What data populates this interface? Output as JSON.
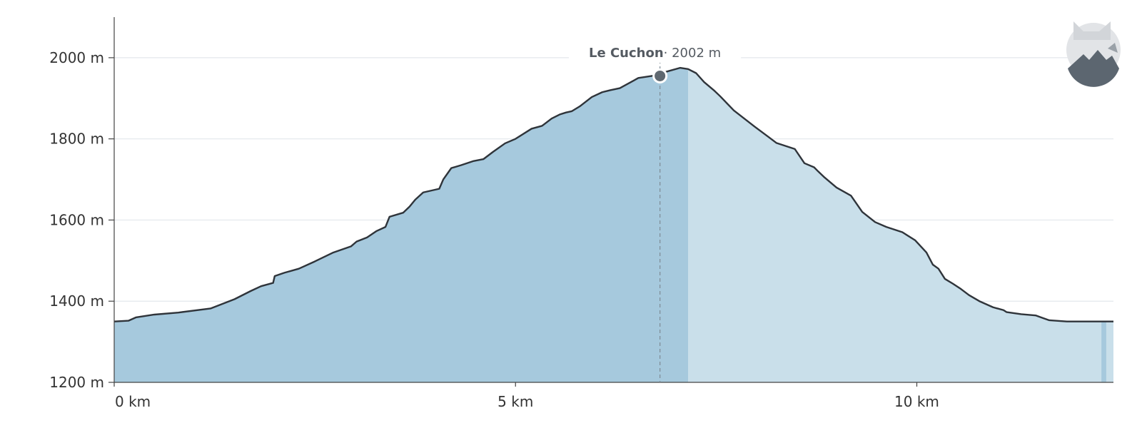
{
  "chart_data": {
    "type": "area",
    "xlabel": "",
    "ylabel": "",
    "x_unit": "km",
    "y_unit": "m",
    "xlim": [
      0,
      12.45
    ],
    "ylim": [
      1200,
      2100
    ],
    "x_ticks": [
      0,
      5,
      10
    ],
    "x_tick_labels": [
      "0 km",
      "5 km",
      "10 km"
    ],
    "y_ticks": [
      1200,
      1400,
      1600,
      1800,
      2000
    ],
    "y_tick_labels": [
      "1200 m",
      "1400 m",
      "1600 m",
      "1800 m",
      "2000 m"
    ],
    "grid": true,
    "highlight_range_km": [
      0,
      7.15
    ],
    "highlight_end_range_km": [
      12.3,
      12.36
    ],
    "x": [
      0,
      0.18,
      0.27,
      0.5,
      0.8,
      1.2,
      1.5,
      1.7,
      1.83,
      1.98,
      2.0,
      2.12,
      2.3,
      2.5,
      2.73,
      2.95,
      3.02,
      3.15,
      3.27,
      3.38,
      3.43,
      3.6,
      3.68,
      3.75,
      3.85,
      4.05,
      4.1,
      4.2,
      4.32,
      4.47,
      4.6,
      4.72,
      4.87,
      5.0,
      5.2,
      5.33,
      5.45,
      5.55,
      5.63,
      5.7,
      5.8,
      5.95,
      6.08,
      6.18,
      6.3,
      6.53,
      6.7,
      6.87,
      7.05,
      7.15,
      7.25,
      7.35,
      7.47,
      7.55,
      7.72,
      7.85,
      7.98,
      8.15,
      8.25,
      8.48,
      8.6,
      8.72,
      8.77,
      8.85,
      9.0,
      9.18,
      9.32,
      9.48,
      9.62,
      9.82,
      9.98,
      10.12,
      10.2,
      10.27,
      10.35,
      10.45,
      10.55,
      10.65,
      10.78,
      10.95,
      11.08,
      11.12,
      11.3,
      11.48,
      11.55,
      11.65,
      11.87,
      12.05,
      12.15,
      12.45
    ],
    "y": [
      1350,
      1352,
      1360,
      1367,
      1372,
      1382,
      1405,
      1425,
      1437,
      1445,
      1462,
      1470,
      1480,
      1498,
      1520,
      1535,
      1547,
      1557,
      1573,
      1583,
      1608,
      1618,
      1633,
      1650,
      1668,
      1677,
      1700,
      1728,
      1735,
      1745,
      1750,
      1768,
      1789,
      1800,
      1825,
      1832,
      1850,
      1860,
      1865,
      1868,
      1880,
      1903,
      1915,
      1920,
      1925,
      1950,
      1955,
      1965,
      1975,
      1972,
      1962,
      1940,
      1920,
      1905,
      1870,
      1850,
      1830,
      1805,
      1790,
      1775,
      1740,
      1730,
      1720,
      1705,
      1680,
      1660,
      1620,
      1595,
      1583,
      1570,
      1550,
      1520,
      1490,
      1480,
      1455,
      1443,
      1430,
      1415,
      1400,
      1385,
      1378,
      1373,
      1368,
      1365,
      1360,
      1353,
      1350,
      1350,
      1350,
      1350
    ]
  },
  "tooltip": {
    "name": "Le Cuchon",
    "value_text": "· 2002 m",
    "x_km": 6.8,
    "y_m": 1955
  },
  "colors": {
    "fill_highlight": "#a6c9dd",
    "fill_highlight_dark": "#a0c6da",
    "fill_base": "#c9dfea",
    "line": "#2f343a",
    "grid": "#e3e7ec",
    "axis": "#444444",
    "marker": "#5f6870",
    "tooltip_bg": "#ffffff"
  },
  "logo": {
    "icon": "fox-mountain-logo-icon"
  }
}
